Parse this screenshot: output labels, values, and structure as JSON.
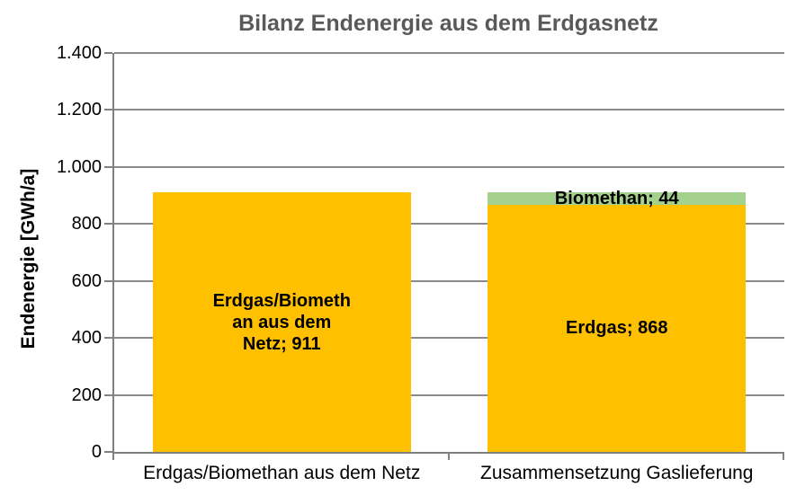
{
  "chart_data": {
    "type": "bar",
    "stacked": true,
    "title": "Bilanz Endenergie aus dem Erdgasnetz",
    "ylabel": "Endenergie [GWh/a]",
    "xlabel": "",
    "ylim": [
      0,
      1400
    ],
    "ytick_step": 200,
    "ytick_labels": [
      "0",
      "200",
      "400",
      "600",
      "800",
      "1.000",
      "1.200",
      "1.400"
    ],
    "grid": "horizontal",
    "legend": "none",
    "categories": [
      "Erdgas/Biomethan aus dem Netz",
      "Zusammensetzung Gaslieferung"
    ],
    "bars": [
      {
        "category": "Erdgas/Biomethan aus dem Netz",
        "segments": [
          {
            "name": "erdgas-biomethan-aus-dem-netz",
            "series": "Erdgas/Biomethan aus dem Netz",
            "value": 911,
            "color": "#FFC000",
            "data_label": "Erdgas/Biomethan aus dem Netz; 911",
            "label_lines": [
              "Erdgas/Biometh",
              "an aus dem",
              "Netz; 911"
            ]
          }
        ]
      },
      {
        "category": "Zusammensetzung Gaslieferung",
        "segments": [
          {
            "name": "erdgas",
            "series": "Erdgas",
            "value": 868,
            "color": "#FFC000",
            "data_label": "Erdgas; 868",
            "label_lines": [
              "Erdgas; 868"
            ]
          },
          {
            "name": "biomethan",
            "series": "Biomethan",
            "value": 44,
            "color": "#A5D18E",
            "data_label": "Biomethan; 44",
            "label_lines": [
              "Biomethan; 44"
            ]
          }
        ]
      }
    ],
    "colors": {
      "bar_yellow": "#FFC000",
      "bar_green": "#A5D18E",
      "gridline": "#8A8A8A",
      "axis": "#808080",
      "title_text": "#595959",
      "label_text": "#000000",
      "background": "#FFFFFF"
    }
  }
}
